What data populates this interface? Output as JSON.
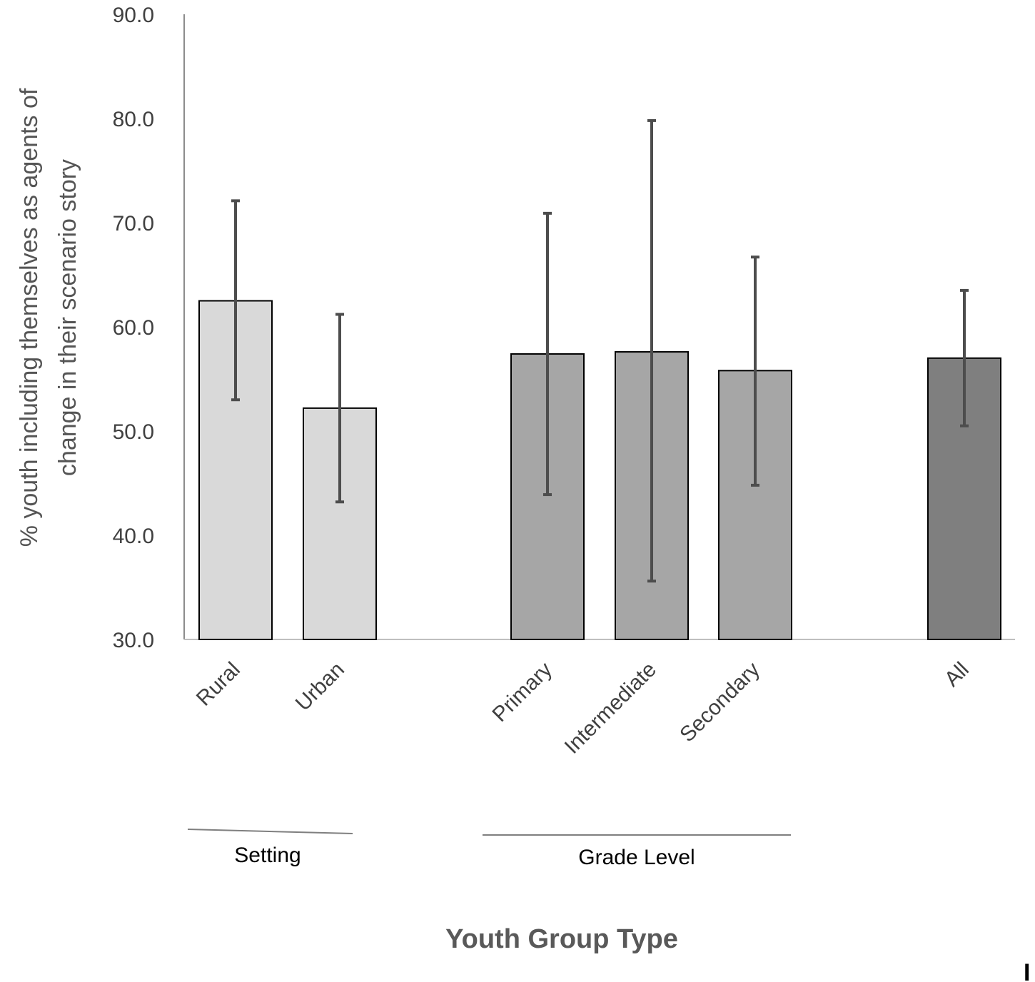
{
  "chart_data": {
    "type": "bar",
    "title": "",
    "xlabel": "Youth Group Type",
    "ylabel": [
      "% youth including themselves as agents of",
      "change in their scenario story"
    ],
    "ylim": [
      30,
      90
    ],
    "yticks": [
      "30.0",
      "40.0",
      "50.0",
      "60.0",
      "70.0",
      "80.0",
      "90.0"
    ],
    "grid": false,
    "categories": [
      "Rural",
      "Urban",
      "Primary",
      "Intermediate",
      "Secondary",
      "All"
    ],
    "values": [
      62.5,
      52.2,
      57.4,
      57.6,
      55.8,
      57.0
    ],
    "error_low": [
      53.0,
      43.2,
      43.9,
      35.6,
      44.8,
      50.5
    ],
    "error_high": [
      72.1,
      61.2,
      70.9,
      79.8,
      66.7,
      63.5
    ],
    "groups": [
      {
        "name": "Setting",
        "members": [
          "Rural",
          "Urban"
        ],
        "color": "#d9d9d9"
      },
      {
        "name": "Grade Level",
        "members": [
          "Primary",
          "Intermediate",
          "Secondary"
        ],
        "color": "#a6a6a6"
      },
      {
        "name": "",
        "members": [
          "All"
        ],
        "color": "#7f7f7f"
      }
    ],
    "bar_colors": [
      "#d9d9d9",
      "#d9d9d9",
      "#a6a6a6",
      "#a6a6a6",
      "#a6a6a6",
      "#7f7f7f"
    ],
    "error_bar_color": "#4d4d4d"
  },
  "corner_mark": "I"
}
